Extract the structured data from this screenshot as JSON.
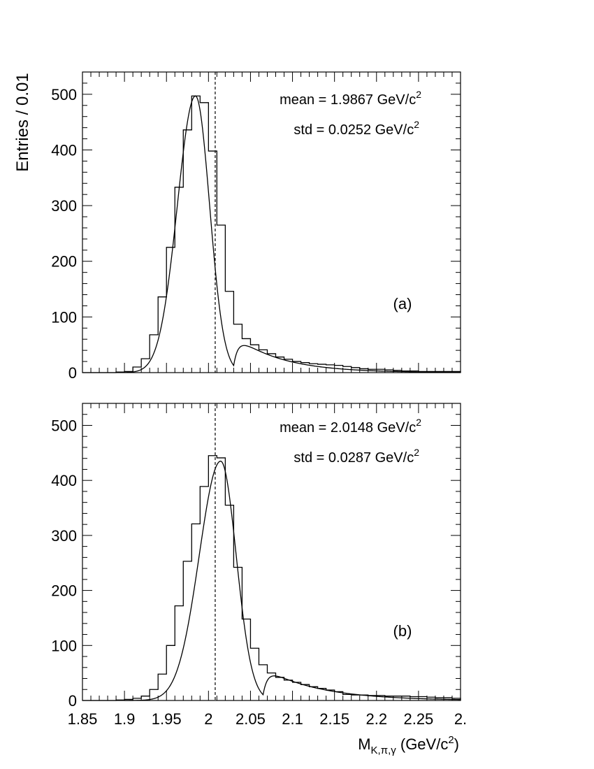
{
  "y_label": "Entries / 0.01",
  "x_label": {
    "main": "M",
    "sub": "K,π,γ",
    "unit_pre": " (GeV/c",
    "unit_sup": "2",
    "unit_post": ")"
  },
  "x_tick_labels": [
    {
      "x": 1.85,
      "label": "1.85"
    },
    {
      "x": 1.9,
      "label": "1.9"
    },
    {
      "x": 1.95,
      "label": "1.95"
    },
    {
      "x": 2.0,
      "label": "2"
    },
    {
      "x": 2.05,
      "label": "2.05"
    },
    {
      "x": 2.1,
      "label": "2.1"
    },
    {
      "x": 2.15,
      "label": "2.15"
    },
    {
      "x": 2.2,
      "label": "2.2"
    },
    {
      "x": 2.25,
      "label": "2.25"
    },
    {
      "x": 2.3,
      "label": "2."
    }
  ],
  "y_tick_labels": [
    "0",
    "100",
    "200",
    "300",
    "400",
    "500"
  ],
  "chart_data": [
    {
      "type": "bar",
      "panel_label": "(a)",
      "mean_text": "mean = 1.9867 GeV/c",
      "std_text": "std = 0.0252 GeV/c",
      "sup": "2",
      "xlim": [
        1.85,
        2.3
      ],
      "ylim": [
        0,
        540
      ],
      "bin_width": 0.01,
      "bin_start": 1.85,
      "reference_line_x": 2.008,
      "values": [
        0,
        0,
        0,
        0,
        1,
        2,
        10,
        25,
        68,
        136,
        225,
        333,
        436,
        497,
        485,
        398,
        265,
        146,
        87,
        61,
        50,
        41,
        34,
        28,
        24,
        20,
        18,
        16,
        15,
        14,
        13,
        11,
        9,
        7,
        6,
        6,
        5,
        4,
        3,
        3,
        2,
        2,
        2,
        2,
        2
      ],
      "fit": {
        "peak_x": 1.9845,
        "amplitude": 497,
        "sigma_left": 0.0215,
        "sigma_right": 0.0168,
        "tail_amplitude": 68,
        "tail_decay": 0.055,
        "tail_start": 2.03
      }
    },
    {
      "type": "bar",
      "panel_label": "(b)",
      "mean_text": "mean = 2.0148 GeV/c",
      "std_text": "std = 0.0287 GeV/c",
      "sup": "2",
      "xlim": [
        1.85,
        2.3
      ],
      "ylim": [
        0,
        540
      ],
      "bin_width": 0.01,
      "bin_start": 1.85,
      "reference_line_x": 2.008,
      "values": [
        0,
        0,
        0,
        0,
        1,
        2,
        4,
        8,
        20,
        48,
        100,
        172,
        253,
        321,
        389,
        445,
        441,
        355,
        242,
        148,
        95,
        65,
        50,
        42,
        37,
        33,
        29,
        25,
        22,
        19,
        16,
        11,
        10,
        10,
        9,
        9,
        8,
        8,
        8,
        7,
        7,
        6,
        5,
        5,
        4
      ],
      "fit": {
        "peak_x": 2.0145,
        "amplitude": 435,
        "sigma_left": 0.0255,
        "sigma_right": 0.0185,
        "tail_amplitude": 60,
        "tail_decay": 0.065,
        "tail_start": 2.065
      }
    }
  ]
}
